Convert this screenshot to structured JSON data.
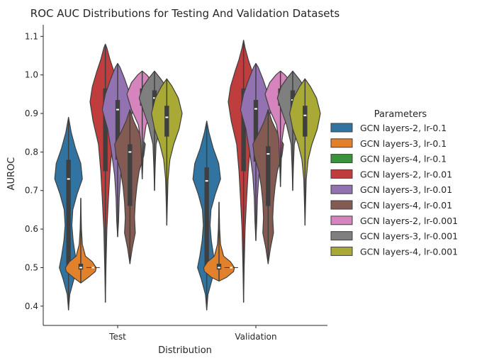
{
  "chart_data": {
    "type": "violin",
    "title": "ROC AUC Distributions for Testing And Validation Datasets",
    "xlabel": "Distribution",
    "ylabel": "AUROC",
    "categories": [
      "Test",
      "Validation"
    ],
    "ylim": [
      0.35,
      1.13
    ],
    "yticks": [
      0.4,
      0.5,
      0.6,
      0.7,
      0.8,
      0.9,
      1.0,
      1.1
    ],
    "ytick_labels": [
      "0.4",
      "0.5",
      "0.6",
      "0.7",
      "0.8",
      "0.9",
      "1.0",
      "1.1"
    ],
    "grid": false,
    "legend": {
      "title": "Parameters",
      "placement": "right"
    },
    "series": [
      {
        "name": "GCN layers-2, lr-0.1",
        "color": "#3274a1",
        "values": [
          {
            "min": 0.39,
            "max": 0.89,
            "median": 0.73,
            "q1": 0.5,
            "q3": 0.78,
            "shape": [
              [
                0.39,
                0.0
              ],
              [
                0.43,
                0.08
              ],
              [
                0.47,
                0.35
              ],
              [
                0.5,
                0.6
              ],
              [
                0.53,
                0.45
              ],
              [
                0.57,
                0.3
              ],
              [
                0.61,
                0.22
              ],
              [
                0.65,
                0.28
              ],
              [
                0.69,
                0.55
              ],
              [
                0.73,
                0.9
              ],
              [
                0.77,
                0.8
              ],
              [
                0.81,
                0.45
              ],
              [
                0.85,
                0.18
              ],
              [
                0.89,
                0.0
              ]
            ]
          },
          {
            "min": 0.39,
            "max": 0.88,
            "median": 0.725,
            "q1": 0.5,
            "q3": 0.76,
            "shape": [
              [
                0.39,
                0.0
              ],
              [
                0.43,
                0.08
              ],
              [
                0.47,
                0.35
              ],
              [
                0.5,
                0.6
              ],
              [
                0.53,
                0.45
              ],
              [
                0.57,
                0.3
              ],
              [
                0.61,
                0.22
              ],
              [
                0.65,
                0.28
              ],
              [
                0.69,
                0.55
              ],
              [
                0.73,
                0.9
              ],
              [
                0.77,
                0.78
              ],
              [
                0.81,
                0.42
              ],
              [
                0.85,
                0.15
              ],
              [
                0.88,
                0.0
              ]
            ]
          }
        ]
      },
      {
        "name": "GCN layers-3, lr-0.1",
        "color": "#e1812c",
        "values": [
          {
            "min": 0.46,
            "max": 0.68,
            "median": 0.5,
            "q1": 0.495,
            "q3": 0.51,
            "shape": [
              [
                0.46,
                0.0
              ],
              [
                0.475,
                0.5
              ],
              [
                0.49,
                0.95
              ],
              [
                0.5,
                1.0
              ],
              [
                0.515,
                0.75
              ],
              [
                0.53,
                0.3
              ],
              [
                0.56,
                0.1
              ],
              [
                0.6,
                0.04
              ],
              [
                0.64,
                0.02
              ],
              [
                0.68,
                0.0
              ]
            ]
          },
          {
            "min": 0.465,
            "max": 0.67,
            "median": 0.5,
            "q1": 0.495,
            "q3": 0.51,
            "shape": [
              [
                0.465,
                0.0
              ],
              [
                0.475,
                0.5
              ],
              [
                0.49,
                0.95
              ],
              [
                0.5,
                1.0
              ],
              [
                0.515,
                0.75
              ],
              [
                0.53,
                0.3
              ],
              [
                0.56,
                0.1
              ],
              [
                0.6,
                0.04
              ],
              [
                0.64,
                0.02
              ],
              [
                0.67,
                0.0
              ]
            ]
          }
        ]
      },
      {
        "name": "GCN layers-4, lr-0.1",
        "color": "#3a923a",
        "values": [
          {
            "min": 0.5,
            "max": 0.5,
            "median": 0.5,
            "q1": 0.5,
            "q3": 0.5,
            "shape": []
          },
          {
            "min": 0.5,
            "max": 0.5,
            "median": 0.5,
            "q1": 0.5,
            "q3": 0.5,
            "shape": []
          }
        ]
      },
      {
        "name": "GCN layers-2, lr-0.01",
        "color": "#c03d3e",
        "values": [
          {
            "min": 0.41,
            "max": 1.08,
            "median": 0.92,
            "q1": 0.75,
            "q3": 0.965,
            "shape": [
              [
                0.41,
                0.0
              ],
              [
                0.5,
                0.04
              ],
              [
                0.6,
                0.1
              ],
              [
                0.68,
                0.2
              ],
              [
                0.75,
                0.3
              ],
              [
                0.82,
                0.45
              ],
              [
                0.88,
                0.8
              ],
              [
                0.93,
                1.0
              ],
              [
                0.97,
                0.85
              ],
              [
                1.01,
                0.55
              ],
              [
                1.04,
                0.3
              ],
              [
                1.07,
                0.1
              ],
              [
                1.08,
                0.0
              ]
            ]
          },
          {
            "min": 0.41,
            "max": 1.09,
            "median": 0.925,
            "q1": 0.75,
            "q3": 0.965,
            "shape": [
              [
                0.41,
                0.0
              ],
              [
                0.5,
                0.04
              ],
              [
                0.6,
                0.1
              ],
              [
                0.68,
                0.2
              ],
              [
                0.75,
                0.3
              ],
              [
                0.82,
                0.45
              ],
              [
                0.88,
                0.8
              ],
              [
                0.93,
                1.0
              ],
              [
                0.97,
                0.85
              ],
              [
                1.01,
                0.55
              ],
              [
                1.04,
                0.3
              ],
              [
                1.07,
                0.1
              ],
              [
                1.09,
                0.0
              ]
            ]
          }
        ]
      },
      {
        "name": "GCN layers-3, lr-0.01",
        "color": "#9372b2",
        "values": [
          {
            "min": 0.58,
            "max": 1.03,
            "median": 0.91,
            "q1": 0.78,
            "q3": 0.935,
            "shape": [
              [
                0.58,
                0.0
              ],
              [
                0.62,
                0.06
              ],
              [
                0.68,
                0.1
              ],
              [
                0.74,
                0.2
              ],
              [
                0.8,
                0.4
              ],
              [
                0.86,
                0.65
              ],
              [
                0.91,
                1.0
              ],
              [
                0.95,
                0.8
              ],
              [
                0.99,
                0.45
              ],
              [
                1.02,
                0.15
              ],
              [
                1.03,
                0.0
              ]
            ]
          },
          {
            "min": 0.57,
            "max": 1.03,
            "median": 0.912,
            "q1": 0.775,
            "q3": 0.935,
            "shape": [
              [
                0.57,
                0.0
              ],
              [
                0.62,
                0.06
              ],
              [
                0.68,
                0.1
              ],
              [
                0.74,
                0.2
              ],
              [
                0.8,
                0.4
              ],
              [
                0.86,
                0.65
              ],
              [
                0.91,
                1.0
              ],
              [
                0.95,
                0.8
              ],
              [
                0.99,
                0.45
              ],
              [
                1.02,
                0.15
              ],
              [
                1.03,
                0.0
              ]
            ]
          }
        ]
      },
      {
        "name": "GCN layers-4, lr-0.01",
        "color": "#845b53",
        "values": [
          {
            "min": 0.51,
            "max": 0.91,
            "median": 0.8,
            "q1": 0.66,
            "q3": 0.82,
            "shape": [
              [
                0.51,
                0.0
              ],
              [
                0.55,
                0.15
              ],
              [
                0.59,
                0.35
              ],
              [
                0.63,
                0.3
              ],
              [
                0.67,
                0.35
              ],
              [
                0.71,
                0.45
              ],
              [
                0.75,
                0.6
              ],
              [
                0.79,
                0.9
              ],
              [
                0.82,
                1.0
              ],
              [
                0.85,
                0.6
              ],
              [
                0.88,
                0.25
              ],
              [
                0.91,
                0.0
              ]
            ]
          },
          {
            "min": 0.51,
            "max": 0.91,
            "median": 0.795,
            "q1": 0.66,
            "q3": 0.815,
            "shape": [
              [
                0.51,
                0.0
              ],
              [
                0.55,
                0.15
              ],
              [
                0.59,
                0.35
              ],
              [
                0.63,
                0.3
              ],
              [
                0.67,
                0.35
              ],
              [
                0.71,
                0.45
              ],
              [
                0.75,
                0.6
              ],
              [
                0.79,
                0.9
              ],
              [
                0.82,
                1.0
              ],
              [
                0.85,
                0.6
              ],
              [
                0.88,
                0.25
              ],
              [
                0.91,
                0.0
              ]
            ]
          }
        ]
      },
      {
        "name": "GCN layers-2, lr-0.001",
        "color": "#d684bd",
        "values": [
          {
            "min": 0.73,
            "max": 1.01,
            "median": 0.95,
            "q1": 0.92,
            "q3": 0.965,
            "shape": [
              [
                0.73,
                0.0
              ],
              [
                0.78,
                0.05
              ],
              [
                0.83,
                0.1
              ],
              [
                0.87,
                0.25
              ],
              [
                0.91,
                0.7
              ],
              [
                0.95,
                1.0
              ],
              [
                0.98,
                0.7
              ],
              [
                1.0,
                0.3
              ],
              [
                1.01,
                0.0
              ]
            ]
          },
          {
            "min": 0.71,
            "max": 1.01,
            "median": 0.95,
            "q1": 0.92,
            "q3": 0.965,
            "shape": [
              [
                0.71,
                0.0
              ],
              [
                0.77,
                0.05
              ],
              [
                0.83,
                0.1
              ],
              [
                0.87,
                0.25
              ],
              [
                0.91,
                0.7
              ],
              [
                0.95,
                1.0
              ],
              [
                0.98,
                0.7
              ],
              [
                1.0,
                0.3
              ],
              [
                1.01,
                0.0
              ]
            ]
          }
        ]
      },
      {
        "name": "GCN layers-3, lr-0.001",
        "color": "#7f7f7f",
        "values": [
          {
            "min": 0.7,
            "max": 1.01,
            "median": 0.94,
            "q1": 0.89,
            "q3": 0.96,
            "shape": [
              [
                0.7,
                0.0
              ],
              [
                0.76,
                0.04
              ],
              [
                0.82,
                0.1
              ],
              [
                0.87,
                0.4
              ],
              [
                0.91,
                0.75
              ],
              [
                0.94,
                1.0
              ],
              [
                0.97,
                0.75
              ],
              [
                0.99,
                0.4
              ],
              [
                1.01,
                0.0
              ]
            ]
          },
          {
            "min": 0.7,
            "max": 1.01,
            "median": 0.935,
            "q1": 0.89,
            "q3": 0.96,
            "shape": [
              [
                0.7,
                0.0
              ],
              [
                0.76,
                0.04
              ],
              [
                0.82,
                0.1
              ],
              [
                0.87,
                0.4
              ],
              [
                0.91,
                0.75
              ],
              [
                0.94,
                1.0
              ],
              [
                0.97,
                0.75
              ],
              [
                0.99,
                0.4
              ],
              [
                1.01,
                0.0
              ]
            ]
          }
        ]
      },
      {
        "name": "GCN layers-4, lr-0.001",
        "color": "#a9aa35",
        "values": [
          {
            "min": 0.61,
            "max": 0.99,
            "median": 0.89,
            "q1": 0.84,
            "q3": 0.92,
            "shape": [
              [
                0.61,
                0.0
              ],
              [
                0.67,
                0.04
              ],
              [
                0.73,
                0.08
              ],
              [
                0.78,
                0.2
              ],
              [
                0.82,
                0.45
              ],
              [
                0.86,
                0.8
              ],
              [
                0.9,
                1.0
              ],
              [
                0.94,
                0.75
              ],
              [
                0.97,
                0.35
              ],
              [
                0.99,
                0.0
              ]
            ]
          },
          {
            "min": 0.61,
            "max": 0.99,
            "median": 0.895,
            "q1": 0.84,
            "q3": 0.92,
            "shape": [
              [
                0.61,
                0.0
              ],
              [
                0.67,
                0.04
              ],
              [
                0.73,
                0.08
              ],
              [
                0.78,
                0.2
              ],
              [
                0.82,
                0.45
              ],
              [
                0.86,
                0.8
              ],
              [
                0.9,
                1.0
              ],
              [
                0.94,
                0.75
              ],
              [
                0.97,
                0.35
              ],
              [
                0.99,
                0.0
              ]
            ]
          }
        ]
      }
    ]
  }
}
